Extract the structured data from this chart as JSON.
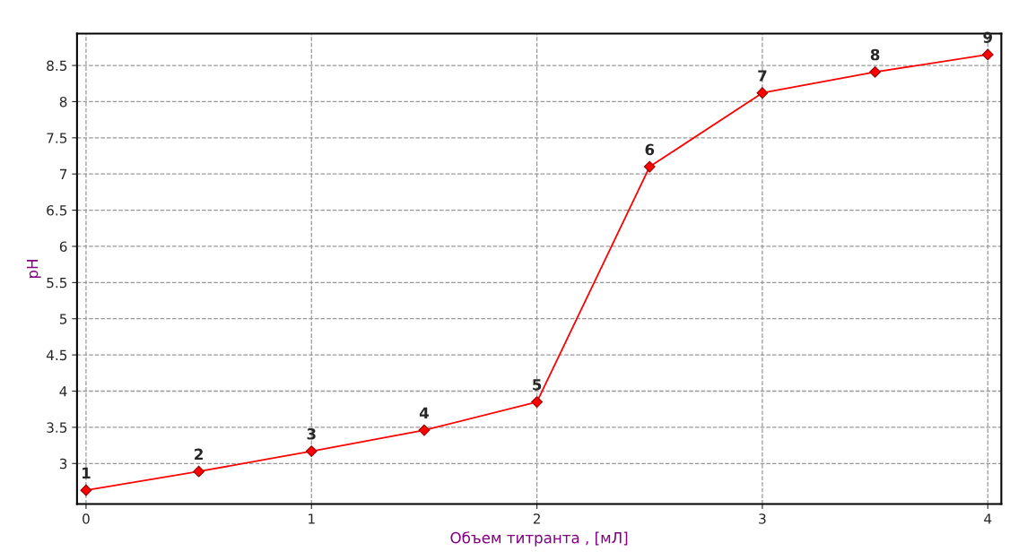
{
  "chart_data": {
    "type": "line",
    "xlabel": "Объем титранта , [мЛ]",
    "ylabel": "pH",
    "x": [
      0,
      0.5,
      1,
      1.5,
      2,
      2.5,
      3,
      3.5,
      4
    ],
    "series": [
      {
        "color": "#ff0000",
        "values": [
          2.63,
          2.89,
          3.17,
          3.46,
          3.85,
          7.1,
          8.12,
          8.41,
          8.65
        ]
      }
    ],
    "xlim": [
      -0.04,
      4.06
    ],
    "ylim": [
      2.44,
      8.94
    ],
    "xticks": [
      0,
      1,
      2,
      3,
      4
    ],
    "yticks": [
      3,
      3.5,
      4,
      4.5,
      5,
      5.5,
      6,
      6.5,
      7,
      7.5,
      8,
      8.5
    ],
    "grid": true,
    "marker": "diamond",
    "line_style": "solid",
    "annotations": [
      {
        "text": "1",
        "x": 0,
        "y": 2.63
      },
      {
        "text": "2",
        "x": 0.5,
        "y": 2.89
      },
      {
        "text": "3",
        "x": 1,
        "y": 3.17
      },
      {
        "text": "4",
        "x": 1.5,
        "y": 3.46
      },
      {
        "text": "5",
        "x": 2,
        "y": 3.85
      },
      {
        "text": "6",
        "x": 2.5,
        "y": 7.1
      },
      {
        "text": "7",
        "x": 3,
        "y": 8.12
      },
      {
        "text": "8",
        "x": 3.5,
        "y": 8.41
      },
      {
        "text": "9",
        "x": 4,
        "y": 8.65
      }
    ]
  }
}
